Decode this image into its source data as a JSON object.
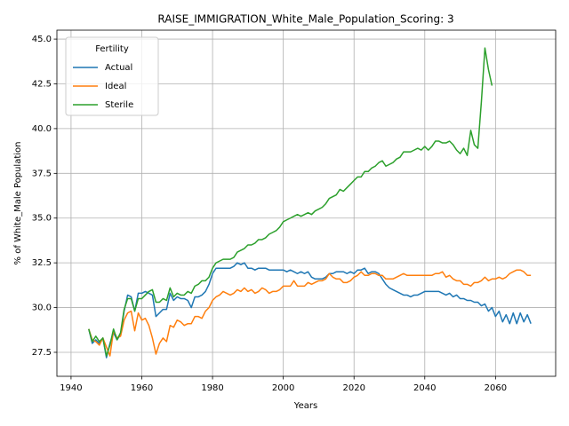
{
  "chart_data": {
    "type": "line",
    "title": "RAISE_IMMIGRATION_White_Male_Population_Scoring: 3",
    "xlabel": "Years",
    "ylabel": "% of White_Male Population",
    "legend_title": "Fertility",
    "legend": "upper left",
    "grid": true,
    "x": [
      1945,
      1946,
      1947,
      1948,
      1949,
      1950,
      1951,
      1952,
      1953,
      1954,
      1955,
      1956,
      1957,
      1958,
      1959,
      1960,
      1961,
      1962,
      1963,
      1964,
      1965,
      1966,
      1967,
      1968,
      1969,
      1970,
      1971,
      1972,
      1973,
      1974,
      1975,
      1976,
      1977,
      1978,
      1979,
      1980,
      1981,
      1982,
      1983,
      1984,
      1985,
      1986,
      1987,
      1988,
      1989,
      1990,
      1991,
      1992,
      1993,
      1994,
      1995,
      1996,
      1997,
      1998,
      1999,
      2000,
      2001,
      2002,
      2003,
      2004,
      2005,
      2006,
      2007,
      2008,
      2009,
      2010,
      2011,
      2012,
      2013,
      2014,
      2015,
      2016,
      2017,
      2018,
      2019,
      2020,
      2021,
      2022,
      2023,
      2024,
      2025,
      2026,
      2027,
      2028,
      2029,
      2030,
      2031,
      2032,
      2033,
      2034,
      2035,
      2036,
      2037,
      2038,
      2039,
      2040,
      2041,
      2042,
      2043,
      2044,
      2045,
      2046,
      2047,
      2048,
      2049,
      2050,
      2051,
      2052,
      2053,
      2054,
      2055,
      2056,
      2057,
      2058,
      2059,
      2060,
      2061,
      2062,
      2063,
      2064,
      2065,
      2066,
      2067,
      2068,
      2069,
      2070
    ],
    "series": [
      {
        "name": "Actual",
        "color": "#1f77b4",
        "values": [
          28.8,
          28.0,
          28.2,
          28.0,
          28.3,
          27.2,
          28.0,
          28.6,
          28.2,
          28.5,
          29.8,
          30.7,
          30.6,
          29.8,
          30.8,
          30.8,
          30.9,
          30.8,
          30.7,
          29.5,
          29.7,
          29.9,
          29.9,
          30.8,
          30.4,
          30.6,
          30.5,
          30.5,
          30.4,
          30.0,
          30.6,
          30.6,
          30.7,
          30.9,
          31.3,
          31.9,
          32.2,
          32.2,
          32.2,
          32.2,
          32.2,
          32.3,
          32.5,
          32.4,
          32.5,
          32.2,
          32.2,
          32.1,
          32.2,
          32.2,
          32.2,
          32.1,
          32.1,
          32.1,
          32.1,
          32.1,
          32.0,
          32.1,
          32.0,
          31.9,
          32.0,
          31.9,
          32.0,
          31.7,
          31.6,
          31.6,
          31.6,
          31.7,
          31.9,
          31.9,
          32.0,
          32.0,
          32.0,
          31.9,
          32.0,
          31.9,
          32.1,
          32.1,
          32.2,
          31.9,
          32.0,
          32.0,
          31.9,
          31.6,
          31.3,
          31.1,
          31.0,
          30.9,
          30.8,
          30.7,
          30.7,
          30.6,
          30.7,
          30.7,
          30.8,
          30.9,
          30.9,
          30.9,
          30.9,
          30.9,
          30.8,
          30.7,
          30.8,
          30.6,
          30.7,
          30.5,
          30.5,
          30.4,
          30.4,
          30.3,
          30.3,
          30.1,
          30.2,
          29.8,
          30.0,
          29.5,
          29.8,
          29.2,
          29.6,
          29.1,
          29.7,
          29.1,
          29.7,
          29.2,
          29.6,
          29.1
        ]
      },
      {
        "name": "Ideal",
        "color": "#ff7f0e",
        "values": [
          28.8,
          28.2,
          28.1,
          27.9,
          28.3,
          27.8,
          27.3,
          28.7,
          28.3,
          28.4,
          29.3,
          29.7,
          29.8,
          28.7,
          29.7,
          29.3,
          29.4,
          29.0,
          28.3,
          27.4,
          28.0,
          28.3,
          28.1,
          29.0,
          28.9,
          29.3,
          29.2,
          29.0,
          29.1,
          29.1,
          29.5,
          29.5,
          29.4,
          29.8,
          30.0,
          30.4,
          30.6,
          30.7,
          30.9,
          30.8,
          30.7,
          30.8,
          31.0,
          30.9,
          31.1,
          30.9,
          31.0,
          30.8,
          30.9,
          31.1,
          31.0,
          30.8,
          30.9,
          30.9,
          31.0,
          31.2,
          31.2,
          31.2,
          31.5,
          31.2,
          31.2,
          31.2,
          31.4,
          31.3,
          31.4,
          31.5,
          31.5,
          31.6,
          31.9,
          31.7,
          31.6,
          31.6,
          31.4,
          31.4,
          31.5,
          31.7,
          31.8,
          32.0,
          31.8,
          31.8,
          31.9,
          31.9,
          31.8,
          31.8,
          31.6,
          31.6,
          31.6,
          31.7,
          31.8,
          31.9,
          31.8,
          31.8,
          31.8,
          31.8,
          31.8,
          31.8,
          31.8,
          31.8,
          31.9,
          31.9,
          32.0,
          31.7,
          31.8,
          31.6,
          31.5,
          31.5,
          31.3,
          31.3,
          31.2,
          31.4,
          31.4,
          31.5,
          31.7,
          31.5,
          31.6,
          31.6,
          31.7,
          31.6,
          31.7,
          31.9,
          32.0,
          32.1,
          32.1,
          32.0,
          31.8,
          31.8
        ]
      },
      {
        "name": "Sterile",
        "color": "#2ca02c",
        "values": [
          28.8,
          28.1,
          28.4,
          28.1,
          28.3,
          27.3,
          27.9,
          28.8,
          28.2,
          28.6,
          29.9,
          30.5,
          30.5,
          29.8,
          30.5,
          30.5,
          30.7,
          30.9,
          31.0,
          30.3,
          30.3,
          30.5,
          30.4,
          31.1,
          30.6,
          30.8,
          30.7,
          30.7,
          30.9,
          30.8,
          31.2,
          31.3,
          31.5,
          31.5,
          31.7,
          32.2,
          32.5,
          32.6,
          32.7,
          32.7,
          32.7,
          32.8,
          33.1,
          33.2,
          33.3,
          33.5,
          33.5,
          33.6,
          33.8,
          33.8,
          33.9,
          34.1,
          34.2,
          34.3,
          34.5,
          34.8,
          34.9,
          35.0,
          35.1,
          35.2,
          35.1,
          35.2,
          35.3,
          35.2,
          35.4,
          35.5,
          35.6,
          35.8,
          36.1,
          36.2,
          36.3,
          36.6,
          36.5,
          36.7,
          36.9,
          37.1,
          37.3,
          37.3,
          37.6,
          37.6,
          37.8,
          37.9,
          38.1,
          38.2,
          37.9,
          38.0,
          38.1,
          38.3,
          38.4,
          38.7,
          38.7,
          38.7,
          38.8,
          38.9,
          38.8,
          39.0,
          38.8,
          39.0,
          39.3,
          39.3,
          39.2,
          39.2,
          39.3,
          39.1,
          38.8,
          38.6,
          38.9,
          38.5,
          39.9,
          39.1,
          38.9,
          41.5,
          44.5,
          43.3,
          42.4,
          null,
          null,
          null,
          null,
          null,
          null,
          null,
          null,
          null,
          null,
          null
        ]
      }
    ],
    "xlim": [
      1936,
      2077
    ],
    "xticks": [
      1940,
      1960,
      1980,
      2000,
      2020,
      2040,
      2060
    ],
    "ylim": [
      26.16,
      45.5
    ],
    "yticks": [
      27.5,
      {
        "value": 30,
        "label": "30.0"
      },
      32.5,
      {
        "value": 35,
        "label": "35.0"
      },
      37.5,
      {
        "value": 40,
        "label": "40.0"
      },
      42.5,
      {
        "value": 45,
        "label": "45.0"
      }
    ]
  }
}
